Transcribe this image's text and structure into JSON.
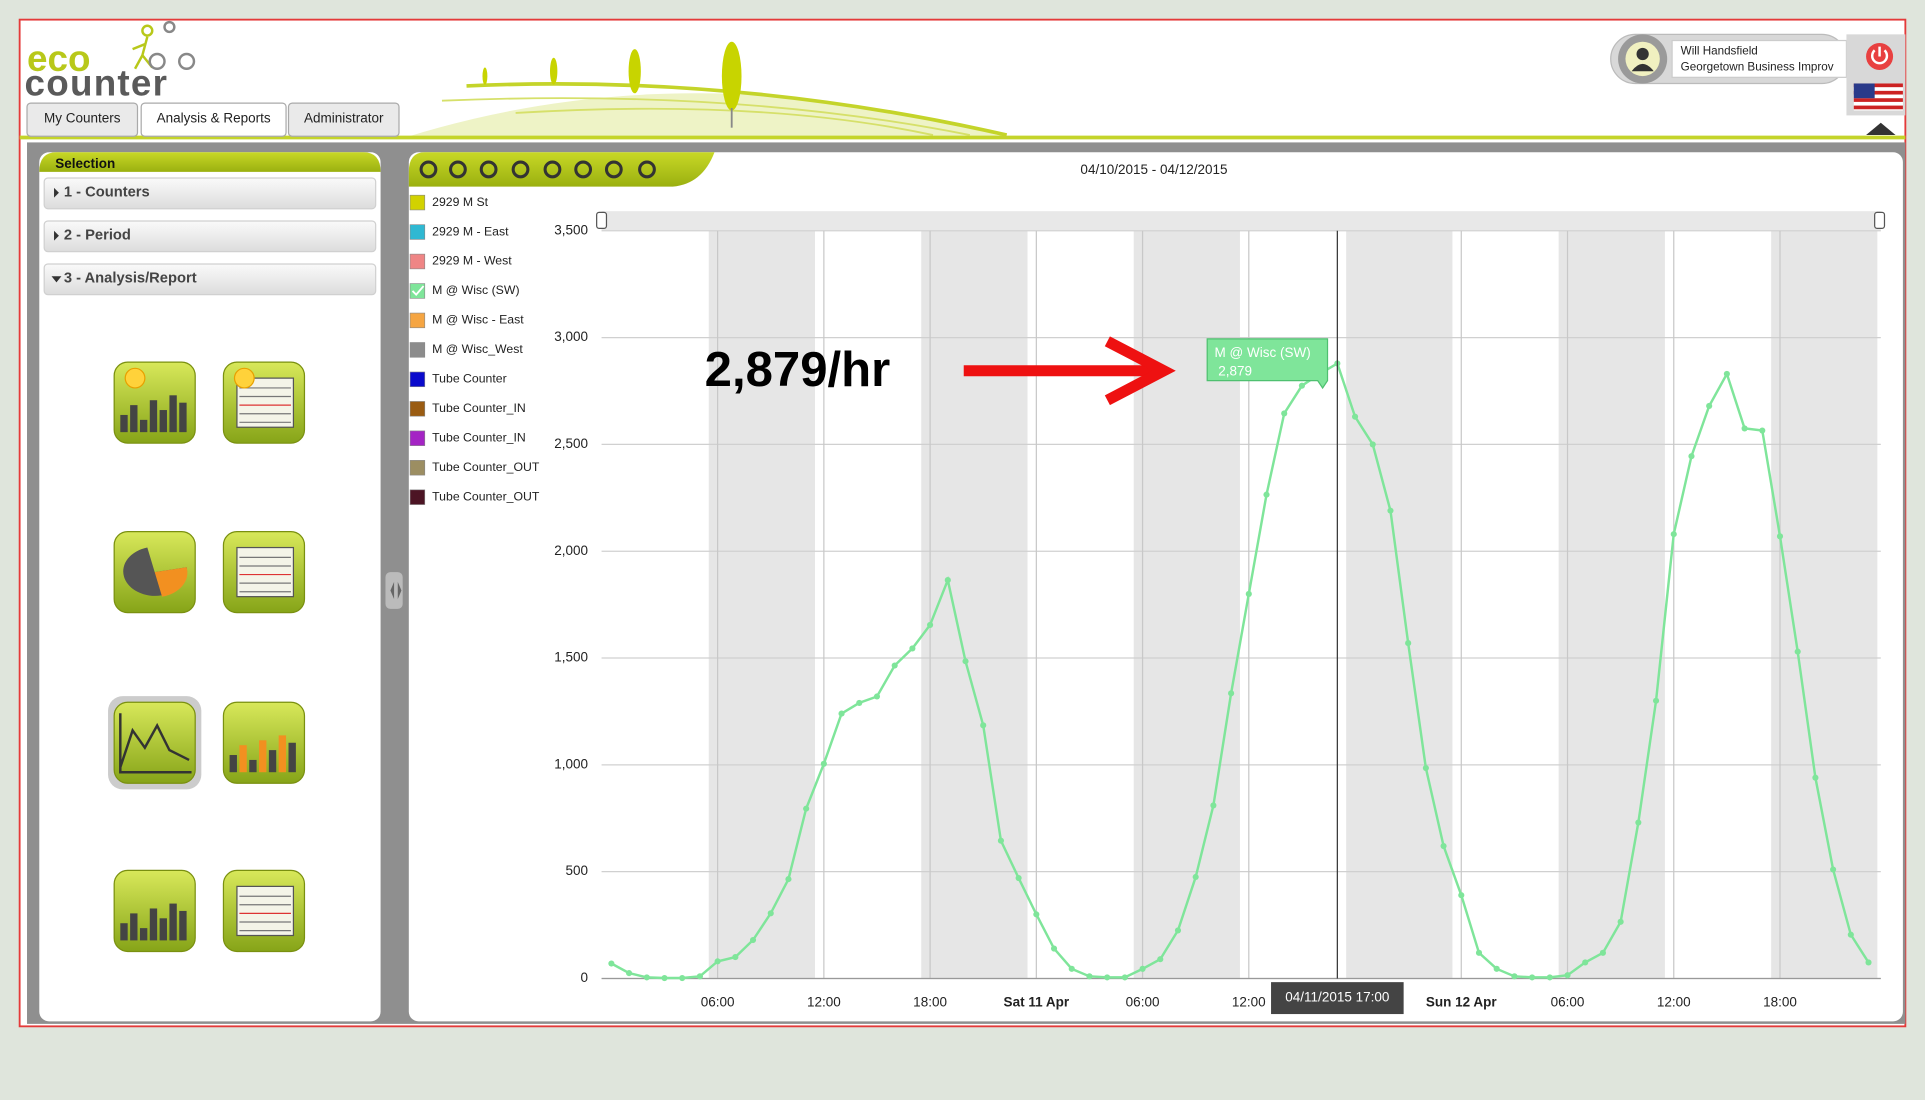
{
  "header": {
    "logo_top": "eco",
    "logo_bottom": "counter",
    "tabs": [
      "My Counters",
      "Analysis & Reports",
      "Administrator"
    ],
    "user": {
      "name": "Will Handsfield",
      "org": "Georgetown Business Improv"
    }
  },
  "selection": {
    "title": "Selection",
    "items": [
      "1 - Counters",
      "2 - Period",
      "3 - Analysis/Report"
    ]
  },
  "chart_data": {
    "type": "line",
    "title": "04/10/2015 - 04/12/2015",
    "legend": [
      {
        "name": "2929 M St",
        "color": "#d2d200"
      },
      {
        "name": "2929 M - East",
        "color": "#2fb8d2"
      },
      {
        "name": "2929 M - West",
        "color": "#ef8585"
      },
      {
        "name": "M @ Wisc (SW)",
        "color": "#7fe59a"
      },
      {
        "name": "M @ Wisc - East",
        "color": "#f5a542"
      },
      {
        "name": "M @ Wisc_West",
        "color": "#8c8c8c"
      },
      {
        "name": "Tube Counter",
        "color": "#0a0acc"
      },
      {
        "name": "Tube Counter_IN",
        "color": "#9a5c12"
      },
      {
        "name": "Tube Counter_IN",
        "color": "#a424c4"
      },
      {
        "name": "Tube Counter_OUT",
        "color": "#9c8e62"
      },
      {
        "name": "Tube Counter_OUT",
        "color": "#4c1424"
      }
    ],
    "x": [
      "04/10/2015 00:00",
      "04/10/2015 01:00",
      "04/10/2015 02:00",
      "04/10/2015 03:00",
      "04/10/2015 04:00",
      "04/10/2015 05:00",
      "04/10/2015 06:00",
      "04/10/2015 07:00",
      "04/10/2015 08:00",
      "04/10/2015 09:00",
      "04/10/2015 10:00",
      "04/10/2015 11:00",
      "04/10/2015 12:00",
      "04/10/2015 13:00",
      "04/10/2015 14:00",
      "04/10/2015 15:00",
      "04/10/2015 16:00",
      "04/10/2015 17:00",
      "04/10/2015 18:00",
      "04/10/2015 19:00",
      "04/10/2015 20:00",
      "04/10/2015 21:00",
      "04/10/2015 22:00",
      "04/10/2015 23:00",
      "04/11/2015 00:00",
      "04/11/2015 01:00",
      "04/11/2015 02:00",
      "04/11/2015 03:00",
      "04/11/2015 04:00",
      "04/11/2015 05:00",
      "04/11/2015 06:00",
      "04/11/2015 07:00",
      "04/11/2015 08:00",
      "04/11/2015 09:00",
      "04/11/2015 10:00",
      "04/11/2015 11:00",
      "04/11/2015 12:00",
      "04/11/2015 13:00",
      "04/11/2015 14:00",
      "04/11/2015 15:00",
      "04/11/2015 16:00",
      "04/11/2015 17:00",
      "04/11/2015 18:00",
      "04/11/2015 19:00",
      "04/11/2015 20:00",
      "04/11/2015 21:00",
      "04/11/2015 22:00",
      "04/11/2015 23:00",
      "04/12/2015 00:00",
      "04/12/2015 01:00",
      "04/12/2015 02:00",
      "04/12/2015 03:00",
      "04/12/2015 04:00",
      "04/12/2015 05:00",
      "04/12/2015 06:00",
      "04/12/2015 07:00",
      "04/12/2015 08:00",
      "04/12/2015 09:00",
      "04/12/2015 10:00",
      "04/12/2015 11:00",
      "04/12/2015 12:00",
      "04/12/2015 13:00",
      "04/12/2015 14:00",
      "04/12/2015 15:00",
      "04/12/2015 16:00",
      "04/12/2015 17:00",
      "04/12/2015 18:00",
      "04/12/2015 19:00",
      "04/12/2015 20:00",
      "04/12/2015 21:00",
      "04/12/2015 22:00",
      "04/12/2015 23:00"
    ],
    "series": [
      {
        "name": "M @ Wisc (SW)",
        "color": "#7fe59a",
        "values": [
          70,
          25,
          5,
          2,
          2,
          10,
          80,
          100,
          180,
          305,
          465,
          795,
          1005,
          1240,
          1290,
          1320,
          1465,
          1545,
          1655,
          1865,
          1485,
          1185,
          645,
          470,
          300,
          140,
          45,
          10,
          5,
          5,
          45,
          90,
          225,
          475,
          810,
          1335,
          1800,
          2265,
          2645,
          2775,
          2830,
          2879,
          2630,
          2500,
          2190,
          1570,
          985,
          620,
          390,
          120,
          45,
          10,
          5,
          5,
          15,
          75,
          120,
          265,
          730,
          1300,
          2080,
          2445,
          2680,
          2830,
          2575,
          2565,
          2070,
          1530,
          940,
          510,
          205,
          75
        ],
        "value_labels": [
          null,
          null,
          null,
          null,
          null,
          null,
          null,
          null,
          null,
          null,
          null,
          null,
          null,
          null,
          null,
          null,
          null,
          null,
          null,
          null,
          null,
          null,
          null,
          null,
          null,
          null,
          null,
          null,
          null,
          null,
          null,
          null,
          null,
          null,
          null,
          null,
          null,
          null,
          null,
          null,
          null,
          "2,879",
          null,
          null,
          null,
          null,
          null,
          null,
          null,
          null,
          null,
          null,
          null,
          null,
          null,
          null,
          null,
          null,
          null,
          null,
          null,
          null,
          null,
          null,
          null,
          null,
          null,
          null,
          null,
          null,
          null,
          null
        ]
      }
    ],
    "ylim": [
      0,
      3500
    ],
    "yticks": [
      0,
      500,
      {
        "value": 1000,
        "label": "1,000"
      },
      {
        "value": 1500,
        "label": "1,500"
      },
      {
        "value": 2000,
        "label": "2,000"
      },
      {
        "value": 2500,
        "label": "2,500"
      },
      {
        "value": 3000,
        "label": "3,000"
      },
      {
        "value": 3500,
        "label": "3,500"
      }
    ],
    "xticks": [
      {
        "value": "04/10/2015 06:00",
        "label": "06:00"
      },
      {
        "value": "04/10/2015 12:00",
        "label": "12:00"
      },
      {
        "value": "04/10/2015 18:00",
        "label": "18:00"
      },
      {
        "value": "04/11/2015 00:00",
        "label": "Sat 11 Apr"
      },
      {
        "value": "04/11/2015 06:00",
        "label": "06:00"
      },
      {
        "value": "04/11/2015 12:00",
        "label": "12:00"
      },
      {
        "value": "04/12/2015 00:00",
        "label": "Sun 12 Apr"
      },
      {
        "value": "04/12/2015 06:00",
        "label": "06:00"
      },
      {
        "value": "04/12/2015 12:00",
        "label": "12:00"
      },
      {
        "value": "04/12/2015 18:00",
        "label": "18:00"
      }
    ],
    "grid": true,
    "tooltip_index": 41,
    "annotations": [
      {
        "text": "2,879/hr",
        "color": "#ee1111"
      }
    ]
  }
}
